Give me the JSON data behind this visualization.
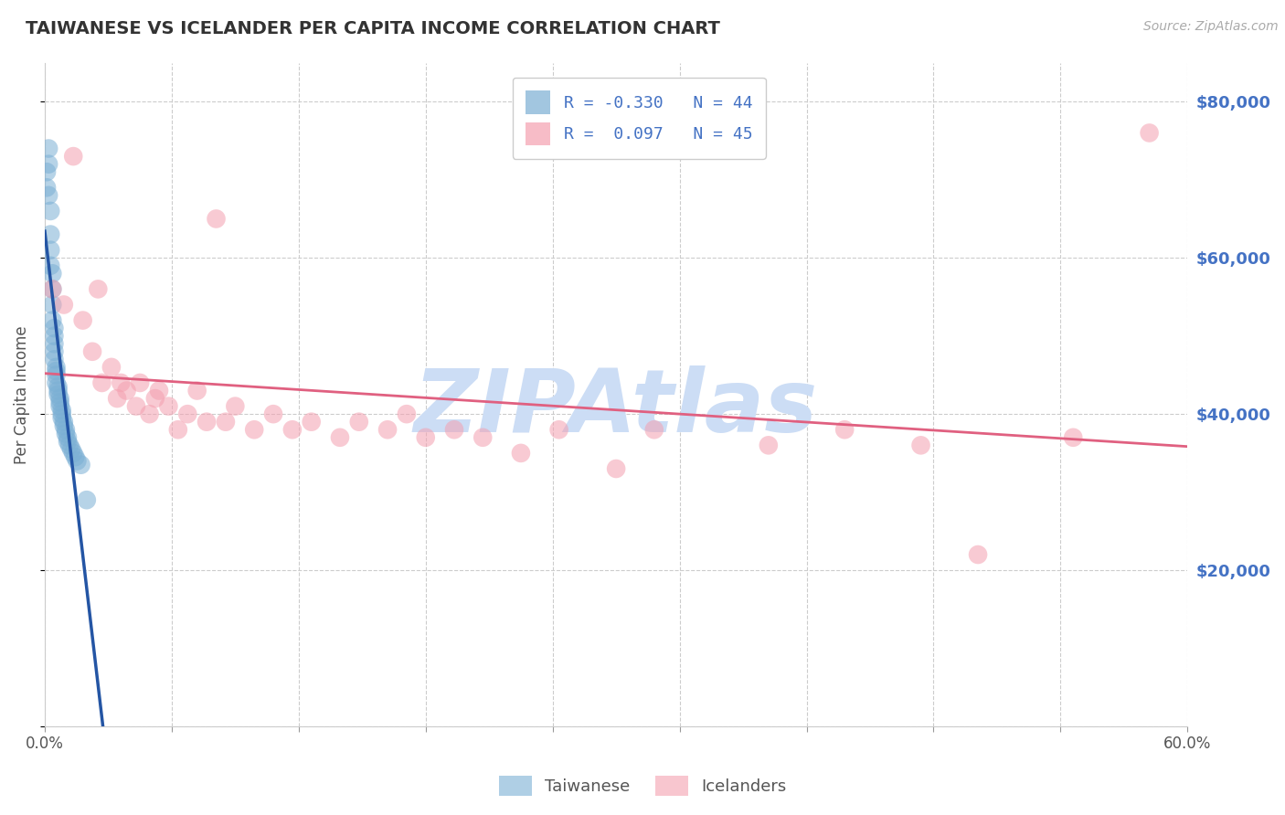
{
  "title": "TAIWANESE VS ICELANDER PER CAPITA INCOME CORRELATION CHART",
  "source_text": "Source: ZipAtlas.com",
  "ylabel": "Per Capita Income",
  "xlim": [
    0.0,
    0.6
  ],
  "ylim": [
    0,
    85000
  ],
  "yticks": [
    0,
    20000,
    40000,
    60000,
    80000
  ],
  "ytick_labels": [
    "",
    "$20,000",
    "$40,000",
    "$60,000",
    "$80,000"
  ],
  "xtick_vals": [
    0.0,
    0.06667,
    0.13333,
    0.2,
    0.26667,
    0.33333,
    0.4,
    0.46667,
    0.53333,
    0.6
  ],
  "xtick_labels_show": [
    "0.0%",
    "",
    "",
    "",
    "",
    "",
    "",
    "",
    "",
    "60.0%"
  ],
  "legend_r_label_1": "R = -0.330   N = 44",
  "legend_r_label_2": "R =  0.097   N = 45",
  "legend_labels": [
    "Taiwanese",
    "Icelanders"
  ],
  "watermark": "ZIPAtlas",
  "watermark_color": "#ccddf5",
  "title_color": "#333333",
  "axis_label_color": "#555555",
  "ytick_color": "#4472c4",
  "grid_color": "#cccccc",
  "taiwanese_color": "#7bafd4",
  "icelander_color": "#f4a0b0",
  "taiwanese_regression_color": "#2455a4",
  "icelander_regression_color": "#e06080",
  "tw_R": -0.33,
  "tw_N": 44,
  "ic_R": 0.097,
  "ic_N": 45,
  "taiwanese_x": [
    0.001,
    0.001,
    0.002,
    0.002,
    0.002,
    0.003,
    0.003,
    0.003,
    0.003,
    0.004,
    0.004,
    0.004,
    0.004,
    0.005,
    0.005,
    0.005,
    0.005,
    0.005,
    0.006,
    0.006,
    0.006,
    0.006,
    0.007,
    0.007,
    0.007,
    0.008,
    0.008,
    0.008,
    0.009,
    0.009,
    0.009,
    0.01,
    0.01,
    0.011,
    0.011,
    0.012,
    0.012,
    0.013,
    0.014,
    0.015,
    0.016,
    0.017,
    0.019,
    0.022
  ],
  "taiwanese_y": [
    71000,
    69000,
    74000,
    72000,
    68000,
    66000,
    63000,
    61000,
    59000,
    58000,
    56000,
    54000,
    52000,
    51000,
    50000,
    49000,
    48000,
    47000,
    46000,
    45500,
    45000,
    44000,
    43500,
    43000,
    42500,
    42000,
    41500,
    41000,
    40500,
    40000,
    39500,
    39000,
    38500,
    38000,
    37500,
    37000,
    36500,
    36000,
    35500,
    35000,
    34500,
    34000,
    33500,
    29000
  ],
  "icelander_x": [
    0.004,
    0.01,
    0.015,
    0.02,
    0.025,
    0.028,
    0.03,
    0.035,
    0.038,
    0.04,
    0.043,
    0.048,
    0.05,
    0.055,
    0.058,
    0.06,
    0.065,
    0.07,
    0.075,
    0.08,
    0.085,
    0.09,
    0.095,
    0.1,
    0.11,
    0.12,
    0.13,
    0.14,
    0.155,
    0.165,
    0.18,
    0.19,
    0.2,
    0.215,
    0.23,
    0.25,
    0.27,
    0.3,
    0.32,
    0.38,
    0.42,
    0.46,
    0.49,
    0.54,
    0.58
  ],
  "icelander_y": [
    56000,
    54000,
    73000,
    52000,
    48000,
    56000,
    44000,
    46000,
    42000,
    44000,
    43000,
    41000,
    44000,
    40000,
    42000,
    43000,
    41000,
    38000,
    40000,
    43000,
    39000,
    65000,
    39000,
    41000,
    38000,
    40000,
    38000,
    39000,
    37000,
    39000,
    38000,
    40000,
    37000,
    38000,
    37000,
    35000,
    38000,
    33000,
    38000,
    36000,
    38000,
    36000,
    22000,
    37000,
    76000
  ]
}
